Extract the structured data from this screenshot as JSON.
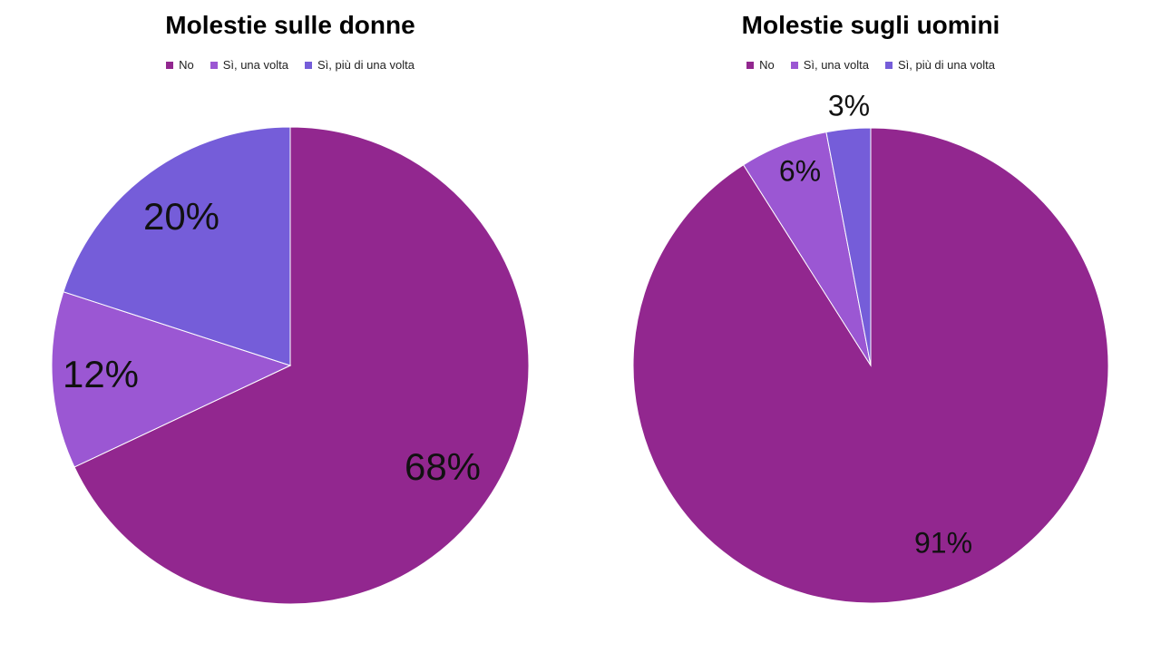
{
  "chart_data": [
    {
      "type": "pie",
      "title": "Molestie sulle donne",
      "categories": [
        "No",
        "Sì, una volta",
        "Sì, più di una volta"
      ],
      "values": [
        68,
        12,
        20
      ],
      "labels": [
        "68%",
        "12%",
        "20%"
      ],
      "colors": [
        "#92278F",
        "#9B57D3",
        "#755DD9"
      ],
      "legend_position": "top"
    },
    {
      "type": "pie",
      "title": "Molestie sugli uomini",
      "categories": [
        "No",
        "Sì, una volta",
        "Sì, più di una volta"
      ],
      "values": [
        91,
        6,
        3
      ],
      "labels": [
        "91%",
        "6%",
        "3%"
      ],
      "colors": [
        "#92278F",
        "#9B57D3",
        "#755DD9"
      ],
      "legend_position": "top"
    }
  ]
}
